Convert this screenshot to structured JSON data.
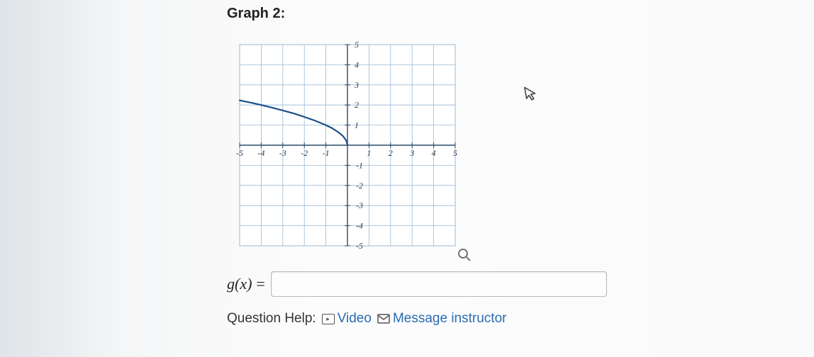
{
  "title": "Graph 2:",
  "chart": {
    "type": "line",
    "xlim": [
      -5,
      5
    ],
    "ylim": [
      -5,
      5
    ],
    "xtick_step": 1,
    "ytick_step": 1,
    "xtick_labels": [
      "-5",
      "-4",
      "-3",
      "-2",
      "-1",
      "",
      "1",
      "2",
      "3",
      "4",
      "5"
    ],
    "ytick_labels": [
      "-5",
      "-4",
      "-3",
      "-2",
      "-1",
      "",
      "1",
      "2",
      "3",
      "4",
      "5"
    ],
    "grid_color": "#9bb9d6",
    "axis_color": "#2a4a6a",
    "background_color": "#ffffff",
    "tick_fontsize": 12,
    "tick_font": "cursive-italic",
    "tick_color": "#2a3a4a",
    "curve": {
      "color": "#1b4f8a",
      "width": 2.2,
      "points": [
        {
          "x": -5.0,
          "y": 2.23
        },
        {
          "x": -4.5,
          "y": 2.12
        },
        {
          "x": -4.0,
          "y": 2.0
        },
        {
          "x": -3.5,
          "y": 1.87
        },
        {
          "x": -3.0,
          "y": 1.73
        },
        {
          "x": -2.5,
          "y": 1.58
        },
        {
          "x": -2.0,
          "y": 1.41
        },
        {
          "x": -1.5,
          "y": 1.22
        },
        {
          "x": -1.0,
          "y": 1.0
        },
        {
          "x": -0.7,
          "y": 0.84
        },
        {
          "x": -0.4,
          "y": 0.63
        },
        {
          "x": -0.2,
          "y": 0.45
        },
        {
          "x": -0.05,
          "y": 0.22
        },
        {
          "x": 0.0,
          "y": 0.0
        }
      ]
    }
  },
  "answer": {
    "label": "g(x)",
    "eq": "=",
    "value": "",
    "placeholder": ""
  },
  "help": {
    "prefix": "Question Help:",
    "video_label": "Video",
    "message_label": "Message instructor",
    "link_color": "#2a6bb3"
  }
}
